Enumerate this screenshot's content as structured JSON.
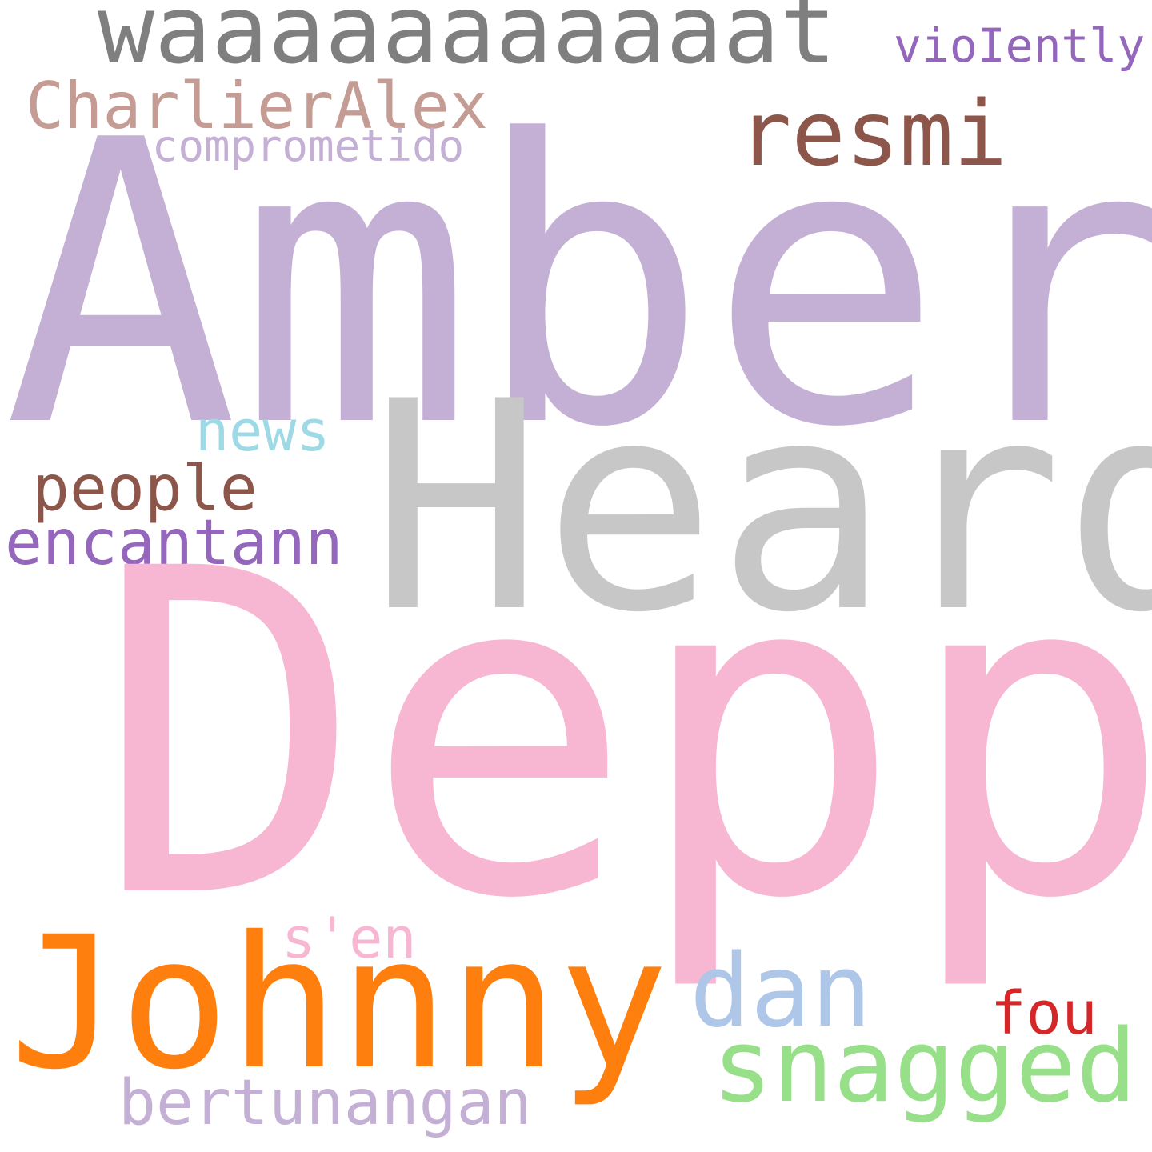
{
  "cloud": {
    "words": [
      {
        "id": "amber",
        "text": "Amber",
        "color": "#c5b0d5"
      },
      {
        "id": "heard",
        "text": "Heard",
        "color": "#c7c7c7"
      },
      {
        "id": "depp",
        "text": "Depp",
        "color": "#f7b6d2"
      },
      {
        "id": "johnny",
        "text": "Johnny",
        "color": "#ff7f0e"
      },
      {
        "id": "waat",
        "text": "waaaaaaaaaaat",
        "color": "#7f7f7f"
      },
      {
        "id": "resmi",
        "text": "resmi",
        "color": "#8c564b"
      },
      {
        "id": "violently",
        "text": "vioIently",
        "color": "#9467bd"
      },
      {
        "id": "charlier",
        "text": "CharlierAlex",
        "color": "#c49c94"
      },
      {
        "id": "comprometido",
        "text": "comprometido",
        "color": "#c5b0d5"
      },
      {
        "id": "news",
        "text": "news",
        "color": "#9edae5"
      },
      {
        "id": "people",
        "text": "people",
        "color": "#8c564b"
      },
      {
        "id": "encantann",
        "text": "encantann",
        "color": "#9467bd"
      },
      {
        "id": "sen",
        "text": "s'en",
        "color": "#f7b6d2"
      },
      {
        "id": "dan",
        "text": "dan",
        "color": "#aec7e8"
      },
      {
        "id": "fou",
        "text": "fou",
        "color": "#d62728"
      },
      {
        "id": "snagged",
        "text": "snagged",
        "color": "#98df8a"
      },
      {
        "id": "bertunangan",
        "text": "bertunangan",
        "color": "#c5b0d5"
      }
    ]
  }
}
